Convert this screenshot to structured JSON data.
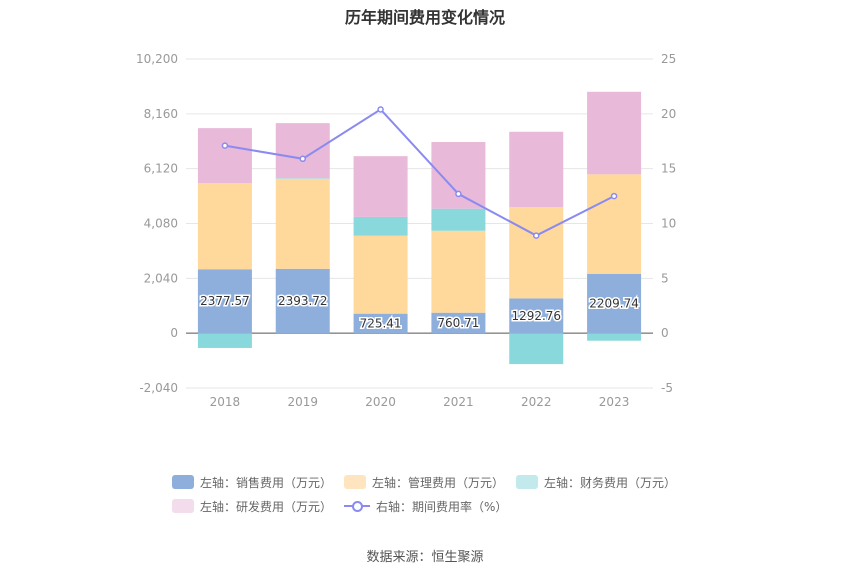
{
  "chart_data": {
    "type": "bar",
    "title": "历年期间费用变化情况",
    "categories": [
      "2018",
      "2019",
      "2020",
      "2021",
      "2022",
      "2023"
    ],
    "stacked": true,
    "left_axis": {
      "ylim": [
        -2040,
        10200
      ],
      "ticks": [
        "-2,040",
        "0",
        "2,040",
        "4,080",
        "6,120",
        "8,160",
        "10,200"
      ],
      "tick_values": [
        -2040,
        0,
        2040,
        4080,
        6120,
        8160,
        10200
      ]
    },
    "right_axis": {
      "ylim": [
        -5,
        25
      ],
      "ticks": [
        "-5",
        "0",
        "5",
        "10",
        "15",
        "20",
        "25"
      ],
      "tick_values": [
        -5,
        0,
        5,
        10,
        15,
        20,
        25
      ]
    },
    "series": [
      {
        "name": "左轴：销售费用（万元）",
        "type": "bar",
        "axis": "left",
        "color": "#8eaedc",
        "values": [
          2377.57,
          2393.72,
          725.41,
          760.71,
          1292.76,
          2209.74
        ],
        "labels": [
          "2377.57",
          "2393.72",
          "725.41",
          "760.71",
          "1292.76",
          "2209.74"
        ]
      },
      {
        "name": "左轴：管理费用（万元）",
        "type": "bar",
        "axis": "left",
        "color": "#fed99b",
        "values": [
          3200,
          3350,
          2900,
          3050,
          3400,
          3700
        ]
      },
      {
        "name": "左轴：财务费用（万元）",
        "type": "bar",
        "axis": "left",
        "color": "#88d8dc",
        "values": [
          -550,
          20,
          700,
          820,
          -1150,
          -280
        ]
      },
      {
        "name": "左轴：研发费用（万元）",
        "type": "bar",
        "axis": "left",
        "color": "#e8b9d8",
        "values": [
          2050,
          2050,
          2260,
          2480,
          2800,
          3070
        ]
      },
      {
        "name": "右轴：期间费用率（%）",
        "type": "line",
        "axis": "right",
        "color": "#8a8af0",
        "values": [
          17.1,
          15.9,
          20.4,
          12.7,
          8.9,
          12.5
        ]
      }
    ],
    "legend_position": "bottom",
    "grid": true
  },
  "legend": {
    "items": [
      {
        "label": "左轴：销售费用（万元）",
        "color": "#8eaedc"
      },
      {
        "label": "左轴：管理费用（万元）",
        "color": "#fee5c0"
      },
      {
        "label": "左轴：财务费用（万元）",
        "color": "#c2eaec"
      },
      {
        "label": "左轴：研发费用（万元）",
        "color": "#f3dcec"
      },
      {
        "label": "右轴：期间费用率（%）",
        "color": "#8a8af0"
      }
    ]
  },
  "source": "数据来源：恒生聚源"
}
